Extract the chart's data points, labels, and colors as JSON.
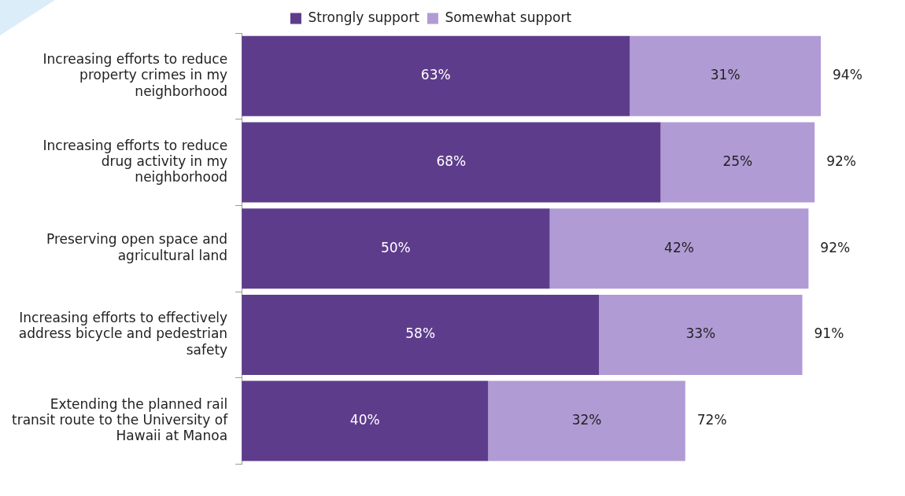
{
  "chart_data": {
    "type": "bar",
    "orientation": "horizontal",
    "stacked": true,
    "categories": [
      "Increasing efforts to reduce property crimes in my neighborhood",
      "Increasing efforts to reduce drug activity in my neighborhood",
      "Preserving open space and agricultural land",
      "Increasing efforts to effectively address bicycle and pedestrian safety",
      "Extending the planned rail transit route to the University of Hawaii at Manoa"
    ],
    "series": [
      {
        "name": "Strongly support",
        "color": "#5e3c8c",
        "values": [
          63,
          68,
          50,
          58,
          40
        ],
        "value_labels": [
          "63%",
          "68%",
          "50%",
          "58%",
          "40%"
        ]
      },
      {
        "name": "Somewhat support",
        "color": "#b19bd5",
        "values": [
          31,
          25,
          42,
          33,
          32
        ],
        "value_labels": [
          "31%",
          "25%",
          "42%",
          "33%",
          "32%"
        ]
      }
    ],
    "tick_labels": "y",
    "grid": false,
    "legend": "top",
    "totals": [
      "94%",
      "92%",
      "92%",
      "91%",
      "72%"
    ]
  }
}
